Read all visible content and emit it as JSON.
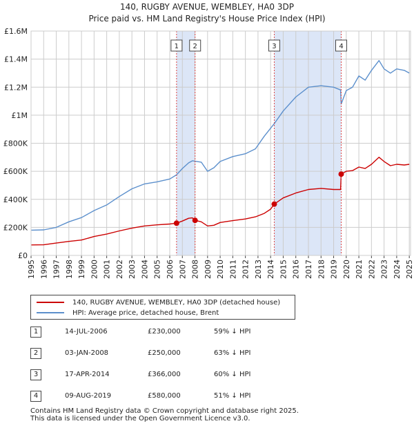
{
  "chart_data": {
    "type": "line",
    "title_line1": "140, RUGBY AVENUE, WEMBLEY, HA0 3DP",
    "title_line2": "Price paid vs. HM Land Registry's House Price Index (HPI)",
    "x_range": [
      1995,
      2025.1
    ],
    "ylim": [
      0,
      1600000
    ],
    "y_ticks": [
      {
        "value": 0,
        "label": "£0"
      },
      {
        "value": 200000,
        "label": "£200K"
      },
      {
        "value": 400000,
        "label": "£400K"
      },
      {
        "value": 600000,
        "label": "£600K"
      },
      {
        "value": 800000,
        "label": "£800K"
      },
      {
        "value": 1000000,
        "label": "£1M"
      },
      {
        "value": 1200000,
        "label": "£1.2M"
      },
      {
        "value": 1400000,
        "label": "£1.4M"
      },
      {
        "value": 1600000,
        "label": "£1.6M"
      }
    ],
    "x_ticks": [
      "1995",
      "1996",
      "1997",
      "1998",
      "1999",
      "2000",
      "2001",
      "2002",
      "2003",
      "2004",
      "2005",
      "2006",
      "2007",
      "2008",
      "2009",
      "2010",
      "2011",
      "2012",
      "2013",
      "2014",
      "2015",
      "2016",
      "2017",
      "2018",
      "2019",
      "2020",
      "2021",
      "2022",
      "2023",
      "2024",
      "2025"
    ],
    "colors": {
      "property": "#cc0000",
      "hpi": "#5b8fcc",
      "shade": "#dce6f7",
      "grid": "#cccccc"
    },
    "shaded_periods": [
      [
        2006.54,
        2008.01
      ],
      [
        2014.29,
        2019.6
      ]
    ],
    "series": [
      {
        "name": "140, RUGBY AVENUE, WEMBLEY, HA0 3DP (detached house)",
        "color": "#cc0000",
        "points": [
          [
            1995,
            75000
          ],
          [
            1996,
            76000
          ],
          [
            1997,
            88000
          ],
          [
            1998,
            100000
          ],
          [
            1999,
            110000
          ],
          [
            2000,
            135000
          ],
          [
            2001,
            152000
          ],
          [
            2002,
            175000
          ],
          [
            2003,
            195000
          ],
          [
            2004,
            210000
          ],
          [
            2005,
            218000
          ],
          [
            2006.0,
            224000
          ],
          [
            2006.54,
            230000
          ],
          [
            2007.0,
            245000
          ],
          [
            2007.5,
            265000
          ],
          [
            2007.8,
            268000
          ],
          [
            2008.01,
            250000
          ],
          [
            2008.5,
            240000
          ],
          [
            2009.0,
            210000
          ],
          [
            2009.5,
            215000
          ],
          [
            2010,
            235000
          ],
          [
            2011,
            248000
          ],
          [
            2012,
            260000
          ],
          [
            2012.8,
            275000
          ],
          [
            2013.5,
            300000
          ],
          [
            2014.0,
            330000
          ],
          [
            2014.29,
            366000
          ],
          [
            2015,
            410000
          ],
          [
            2016,
            445000
          ],
          [
            2017,
            470000
          ],
          [
            2018,
            478000
          ],
          [
            2019.0,
            470000
          ],
          [
            2019.55,
            470000
          ],
          [
            2019.6,
            580000
          ],
          [
            2020,
            600000
          ],
          [
            2020.5,
            605000
          ],
          [
            2021,
            630000
          ],
          [
            2021.5,
            620000
          ],
          [
            2022,
            650000
          ],
          [
            2022.6,
            700000
          ],
          [
            2023,
            670000
          ],
          [
            2023.5,
            640000
          ],
          [
            2024,
            650000
          ],
          [
            2024.6,
            645000
          ],
          [
            2025,
            650000
          ]
        ]
      },
      {
        "name": "HPI: Average price, detached house, Brent",
        "color": "#5b8fcc",
        "points": [
          [
            1995,
            180000
          ],
          [
            1996,
            182000
          ],
          [
            1997,
            200000
          ],
          [
            1998,
            240000
          ],
          [
            1999,
            270000
          ],
          [
            2000,
            320000
          ],
          [
            2001,
            360000
          ],
          [
            2002,
            420000
          ],
          [
            2003,
            475000
          ],
          [
            2004,
            510000
          ],
          [
            2005,
            525000
          ],
          [
            2006.0,
            545000
          ],
          [
            2006.54,
            575000
          ],
          [
            2007.0,
            620000
          ],
          [
            2007.5,
            660000
          ],
          [
            2007.8,
            675000
          ],
          [
            2008.5,
            665000
          ],
          [
            2009.0,
            600000
          ],
          [
            2009.5,
            625000
          ],
          [
            2010,
            670000
          ],
          [
            2011,
            705000
          ],
          [
            2012,
            725000
          ],
          [
            2012.8,
            760000
          ],
          [
            2013.5,
            850000
          ],
          [
            2014.29,
            940000
          ],
          [
            2015,
            1030000
          ],
          [
            2016,
            1130000
          ],
          [
            2017,
            1200000
          ],
          [
            2018,
            1210000
          ],
          [
            2019.0,
            1200000
          ],
          [
            2019.55,
            1180000
          ],
          [
            2019.6,
            1080000
          ],
          [
            2020,
            1175000
          ],
          [
            2020.5,
            1200000
          ],
          [
            2021,
            1280000
          ],
          [
            2021.5,
            1250000
          ],
          [
            2022,
            1320000
          ],
          [
            2022.6,
            1390000
          ],
          [
            2023,
            1330000
          ],
          [
            2023.5,
            1300000
          ],
          [
            2024,
            1330000
          ],
          [
            2024.6,
            1320000
          ],
          [
            2025,
            1300000
          ]
        ]
      }
    ],
    "transactions": [
      {
        "id": "1",
        "year": 2006.54,
        "value": 230000,
        "date": "14-JUL-2006",
        "price": "£230,000",
        "hpi": "59% ↓ HPI"
      },
      {
        "id": "2",
        "year": 2008.01,
        "value": 250000,
        "date": "03-JAN-2008",
        "price": "£250,000",
        "hpi": "63% ↓ HPI"
      },
      {
        "id": "3",
        "year": 2014.29,
        "value": 366000,
        "date": "17-APR-2014",
        "price": "£366,000",
        "hpi": "60% ↓ HPI"
      },
      {
        "id": "4",
        "year": 2019.6,
        "value": 580000,
        "date": "09-AUG-2019",
        "price": "£580,000",
        "hpi": "51% ↓ HPI"
      }
    ]
  },
  "legend": {
    "property_label": "140, RUGBY AVENUE, WEMBLEY, HA0 3DP (detached house)",
    "hpi_label": "HPI: Average price, detached house, Brent"
  },
  "footer": {
    "line1": "Contains HM Land Registry data © Crown copyright and database right 2025.",
    "line2": "This data is licensed under the Open Government Licence v3.0."
  }
}
